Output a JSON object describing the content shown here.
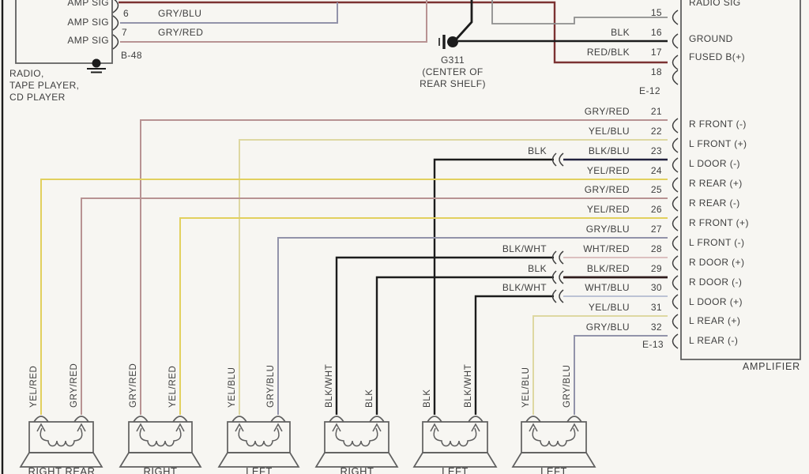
{
  "colors": {
    "background": "#f7f6f2",
    "outline": "#5f5f5f",
    "text": "#3e3e3e",
    "wires": {
      "GRY_RED": "#b89393",
      "GRY_BLU": "#9293aa",
      "YEL_RED": "#e2d05e",
      "YEL_BLU": "#ded8a2",
      "BLK": "#1c1c1c",
      "BLK_BLU": "#22223e",
      "RED_BLK": "#7c3232",
      "BLK_RED": "#2e1b1b",
      "WHT_RED": "#dcc0c0",
      "WHT_BLU": "#bcc2d4",
      "GRY": "#8e8e8e"
    }
  },
  "radio": {
    "device_lines": [
      "RADIO,",
      "TAPE PLAYER,",
      "CD PLAYER"
    ],
    "connector_id": "B-48",
    "rows": [
      {
        "label": "AMP SIG",
        "pin": "",
        "wire": ""
      },
      {
        "label": "AMP SIG",
        "pin": "6",
        "wire": "GRY/BLU"
      },
      {
        "label": "AMP SIG",
        "pin": "7",
        "wire": "GRY/RED"
      }
    ]
  },
  "ground_point": {
    "id": "G311",
    "location_lines": [
      "(CENTER OF",
      "REAR SHELF)"
    ]
  },
  "amplifier": {
    "label": "AMPLIFIER",
    "connector_ids": {
      "top": "E-12",
      "bottom": "E-13"
    },
    "pins": [
      {
        "pin": "15",
        "wire": "",
        "function": "RADIO SIG"
      },
      {
        "pin": "16",
        "wire": "BLK",
        "function": "GROUND"
      },
      {
        "pin": "17",
        "wire": "RED/BLK",
        "function": "FUSED B(+)"
      },
      {
        "pin": "18",
        "wire": "",
        "function": ""
      },
      {
        "pin": "21",
        "wire": "GRY/RED",
        "function": "R FRONT (-)"
      },
      {
        "pin": "22",
        "wire": "YEL/BLU",
        "function": "L FRONT (+)"
      },
      {
        "pin": "23",
        "wire": "BLK/BLU",
        "splice_from": "BLK",
        "function": "L DOOR (-)"
      },
      {
        "pin": "24",
        "wire": "YEL/RED",
        "function": "R REAR (+)"
      },
      {
        "pin": "25",
        "wire": "GRY/RED",
        "function": "R REAR (-)"
      },
      {
        "pin": "26",
        "wire": "YEL/RED",
        "function": "R FRONT (+)"
      },
      {
        "pin": "27",
        "wire": "GRY/BLU",
        "function": "L FRONT (-)"
      },
      {
        "pin": "28",
        "wire": "WHT/RED",
        "splice_from": "BLK/WHT",
        "function": "R DOOR (+)"
      },
      {
        "pin": "29",
        "wire": "BLK/RED",
        "splice_from": "BLK",
        "function": "R DOOR (-)"
      },
      {
        "pin": "30",
        "wire": "WHT/BLU",
        "splice_from": "BLK/WHT",
        "function": "L DOOR (+)"
      },
      {
        "pin": "31",
        "wire": "YEL/BLU",
        "function": "L REAR (+)"
      },
      {
        "pin": "32",
        "wire": "GRY/BLU",
        "function": "L REAR (-)"
      }
    ]
  },
  "speakers": [
    {
      "name": "RIGHT REAR",
      "wires": [
        "YEL/RED",
        "GRY/RED"
      ]
    },
    {
      "name": "RIGHT",
      "wires": [
        "GRY/RED",
        "YEL/RED"
      ]
    },
    {
      "name": "LEFT",
      "wires": [
        "YEL/BLU",
        "GRY/BLU"
      ]
    },
    {
      "name": "RIGHT",
      "wires": [
        "BLK/WHT",
        "BLK"
      ]
    },
    {
      "name": "LEFT",
      "wires": [
        "BLK",
        "BLK/WHT"
      ]
    },
    {
      "name": "LEFT",
      "wires": [
        "YEL/BLU",
        "GRY/BLU"
      ]
    }
  ]
}
